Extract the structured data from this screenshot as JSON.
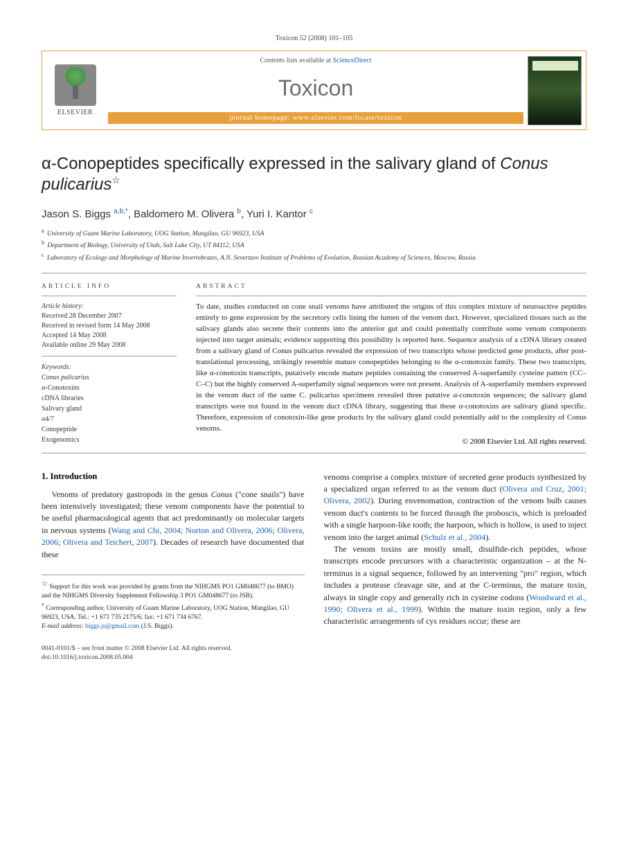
{
  "running_head": "Toxicon 52 (2008) 101–105",
  "header": {
    "contents_prefix": "Contents lists available at ",
    "contents_link": "ScienceDirect",
    "journal": "Toxicon",
    "homepage": "journal homepage: www.elsevier.com/locate/toxicon",
    "publisher": "ELSEVIER"
  },
  "title": "α-Conopeptides specifically expressed in the salivary gland of ",
  "title_italic": "Conus pulicarius",
  "title_star": "☆",
  "authors_html": "Jason S. Biggs",
  "authors": [
    {
      "name": "Jason S. Biggs",
      "sup": "a,b,*"
    },
    {
      "name": "Baldomero M. Olivera",
      "sup": "b"
    },
    {
      "name": "Yuri I. Kantor",
      "sup": "c"
    }
  ],
  "affiliations": [
    {
      "sup": "a",
      "text": "University of Guam Marine Laboratory, UOG Station, Mangilao, GU 96923, USA"
    },
    {
      "sup": "b",
      "text": "Department of Biology, University of Utah, Salt Lake City, UT 84112, USA"
    },
    {
      "sup": "c",
      "text": "Laboratory of Ecology and Morphology of Marine Invertebrates, A.N. Severtzov Institute of Problems of Evolution, Russian Academy of Sciences, Moscow, Russia"
    }
  ],
  "info": {
    "article_info_heading": "ARTICLE INFO",
    "abstract_heading": "ABSTRACT",
    "history_label": "Article history:",
    "history": [
      "Received 28 December 2007",
      "Received in revised form 14 May 2008",
      "Accepted 14 May 2008",
      "Available online 29 May 2008"
    ],
    "keywords_label": "Keywords:",
    "keywords": [
      "Conus pulicarius",
      "α-Conotoxins",
      "cDNA libraries",
      "Salivary gland",
      "α4/7",
      "Conopeptide",
      "Exogenomics"
    ]
  },
  "abstract": "To date, studies conducted on cone snail venoms have attributed the origins of this complex mixture of neuroactive peptides entirely to gene expression by the secretory cells lining the lumen of the venom duct. However, specialized tissues such as the salivary glands also secrete their contents into the anterior gut and could potentially contribute some venom components injected into target animals; evidence supporting this possibility is reported here. Sequence analysis of a cDNA library created from a salivary gland of Conus pulicarius revealed the expression of two transcripts whose predicted gene products, after post-translational processing, strikingly resemble mature conopeptides belonging to the α-conotoxin family. These two transcripts, like α-conotoxin transcripts, putatively encode mature peptides containing the conserved A-superfamily cysteine pattern (CC–C–C) but the highly conserved A-superfamily signal sequences were not present. Analysis of A-superfamily members expressed in the venom duct of the same C. pulicarius specimens revealed three putative α-conotoxin sequences; the salivary gland transcripts were not found in the venom duct cDNA library, suggesting that these α-conotoxins are salivary gland specific. Therefore, expression of conotoxin-like gene products by the salivary gland could potentially add to the complexity of Conus venoms.",
  "copyright": "© 2008 Elsevier Ltd. All rights reserved.",
  "sections": {
    "intro_heading": "1. Introduction",
    "col1_para1_a": "Venoms of predatory gastropods in the genus ",
    "col1_para1_b": "Conus",
    "col1_para1_c": " (\"cone snails\") have been intensively investigated; these venom components have the potential to be useful pharmacological agents that act predominantly on molecular targets in nervous systems (",
    "col1_ref1": "Wang and Chi, 2004; Norton and Olivera, 2006; Olivera, 2006; Olivera and Teichert, 2007",
    "col1_para1_d": "). Decades of research have documented that these",
    "col2_para1_a": "venoms comprise a complex mixture of secreted gene products synthesized by a specialized organ referred to as the venom duct (",
    "col2_ref1": "Olivera and Cruz, 2001; Olivera, 2002",
    "col2_para1_b": "). During envenomation, contraction of the venom bulb causes venom duct's contents to be forced through the proboscis, which is preloaded with a single harpoon-like tooth; the harpoon, which is hollow, is used to inject venom into the target animal (",
    "col2_ref2": "Schulz et al., 2004",
    "col2_para1_c": ").",
    "col2_para2_a": "The venom toxins are mostly small, disulfide-rich peptides, whose transcripts encode precursors with a characteristic organization – at the N-terminus is a signal sequence, followed by an intervening \"pro\" region, which includes a protease cleavage site, and at the C-terminus, the mature toxin, always in single copy and generally rich in cysteine codons (",
    "col2_ref3": "Woodward et al., 1990; Olivera et al., 1999",
    "col2_para2_b": "). Within the mature toxin region, only a few characteristic arrangements of cys residues occur; these are"
  },
  "footnotes": {
    "funding": "Support for this work was provided by grants from the NIHGMS PO1 GM048677 (to BMO) and the NIHGMS Diversity Supplement Fellowship 3 PO1 GM048677 (to JSB).",
    "corresponding": "Corresponding author. University of Guam Marine Laboratory, UOG Station, Mangilao, GU 96923, USA. Tel.: +1 671 735 2175/6; fax: +1 671 734 6767.",
    "email_label": "E-mail address:",
    "email": "biggs.js@gmail.com",
    "email_who": "(J.S. Biggs)."
  },
  "footer": {
    "line1": "0041-0101/$ – see front matter © 2008 Elsevier Ltd. All rights reserved.",
    "line2": "doi:10.1016/j.toxicon.2008.05.004"
  }
}
